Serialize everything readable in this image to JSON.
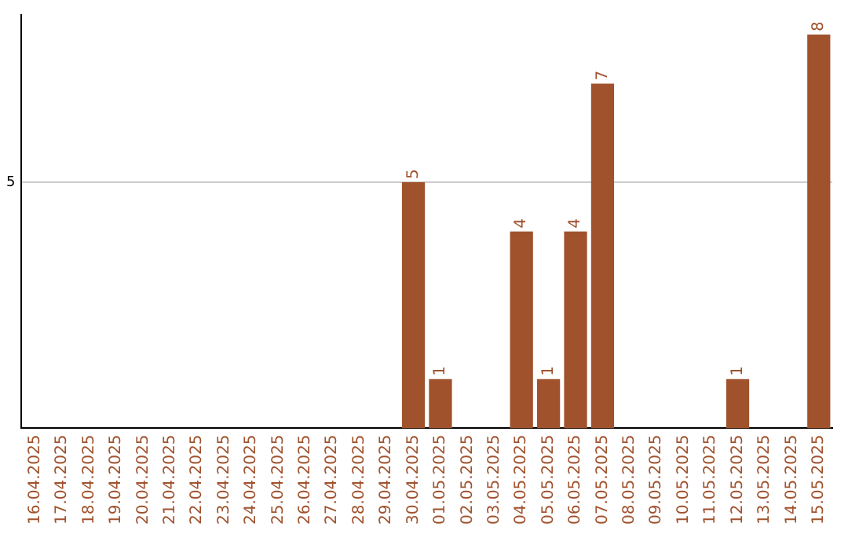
{
  "chart_data": {
    "type": "bar",
    "categories": [
      "16.04.2025",
      "17.04.2025",
      "18.04.2025",
      "19.04.2025",
      "20.04.2025",
      "21.04.2025",
      "22.04.2025",
      "23.04.2025",
      "24.04.2025",
      "25.04.2025",
      "26.04.2025",
      "27.04.2025",
      "28.04.2025",
      "29.04.2025",
      "30.04.2025",
      "01.05.2025",
      "02.05.2025",
      "03.05.2025",
      "04.05.2025",
      "05.05.2025",
      "06.05.2025",
      "07.05.2025",
      "08.05.2025",
      "09.05.2025",
      "10.05.2025",
      "11.05.2025",
      "12.05.2025",
      "13.05.2025",
      "14.05.2025",
      "15.05.2025"
    ],
    "values": [
      null,
      null,
      null,
      null,
      null,
      null,
      null,
      null,
      null,
      null,
      null,
      null,
      null,
      null,
      5,
      1,
      null,
      null,
      4,
      1,
      4,
      7,
      null,
      null,
      null,
      null,
      1,
      null,
      null,
      8
    ],
    "data_labels": true,
    "color": "#a0522d",
    "ylim": [
      0,
      8.4
    ],
    "yticks": [
      5
    ],
    "grid": "y",
    "legend": false
  }
}
